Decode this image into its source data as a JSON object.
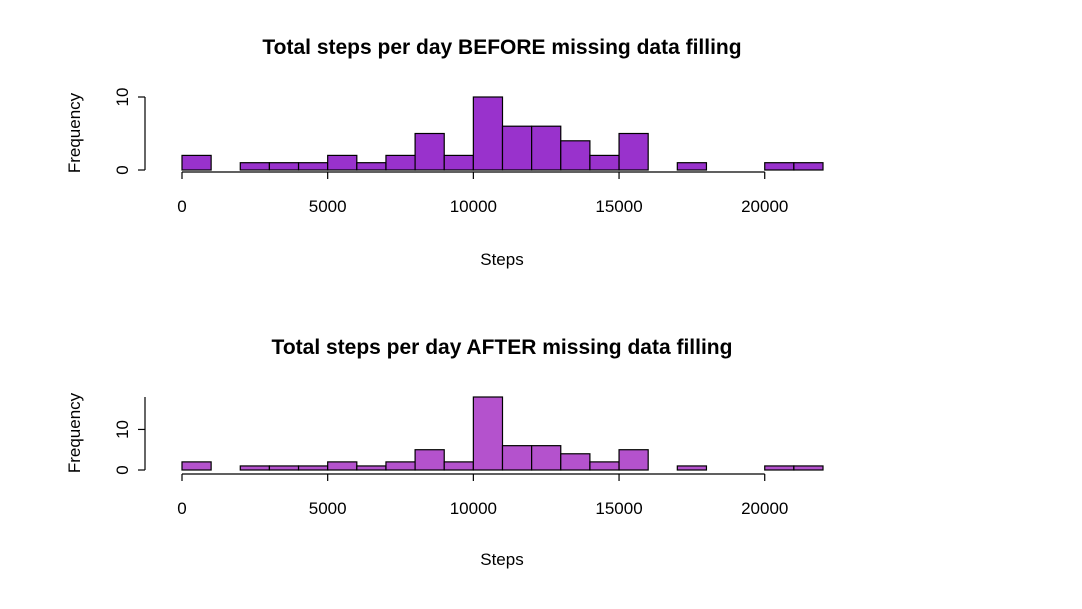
{
  "chart_data": [
    {
      "type": "bar",
      "title": "Total steps per day BEFORE missing data filling",
      "xlabel": "Steps",
      "ylabel": "Frequency",
      "bar_color": "#9932CC",
      "bin_width": 1000,
      "bin_starts": [
        0,
        1000,
        2000,
        3000,
        4000,
        5000,
        6000,
        7000,
        8000,
        9000,
        10000,
        11000,
        12000,
        13000,
        14000,
        15000,
        16000,
        17000,
        18000,
        19000,
        20000,
        21000
      ],
      "values": [
        2,
        0,
        1,
        1,
        1,
        2,
        1,
        2,
        5,
        2,
        10,
        6,
        6,
        4,
        2,
        5,
        0,
        1,
        0,
        0,
        1,
        1
      ],
      "xlim": [
        0,
        22000
      ],
      "ylim": [
        0,
        10
      ],
      "x_ticks": [
        0,
        5000,
        10000,
        15000,
        20000
      ],
      "y_ticks": [
        0,
        10
      ]
    },
    {
      "type": "bar",
      "title": "Total steps per day AFTER missing data filling",
      "xlabel": "Steps",
      "ylabel": "Frequency",
      "bar_color": "#B452CD",
      "bin_width": 1000,
      "bin_starts": [
        0,
        1000,
        2000,
        3000,
        4000,
        5000,
        6000,
        7000,
        8000,
        9000,
        10000,
        11000,
        12000,
        13000,
        14000,
        15000,
        16000,
        17000,
        18000,
        19000,
        20000,
        21000
      ],
      "values": [
        2,
        0,
        1,
        1,
        1,
        2,
        1,
        2,
        5,
        2,
        18,
        6,
        6,
        4,
        2,
        5,
        0,
        1,
        0,
        0,
        1,
        1
      ],
      "xlim": [
        0,
        22000
      ],
      "ylim": [
        0,
        18
      ],
      "x_ticks": [
        0,
        5000,
        10000,
        15000,
        20000
      ],
      "y_ticks": [
        0,
        10
      ]
    }
  ]
}
